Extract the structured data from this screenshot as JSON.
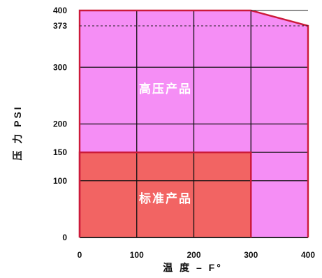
{
  "chart_data": {
    "type": "area",
    "xlabel": "温 度 – F°",
    "ylabel": "压 力 PSI",
    "xlim": [
      0,
      400
    ],
    "ylim": [
      0,
      400
    ],
    "x_ticks": [
      "0",
      "100",
      "200",
      "300",
      "400"
    ],
    "y_ticks": [
      "0",
      "100",
      "150",
      "200",
      "300",
      "373",
      "400"
    ],
    "grid": true,
    "series": [
      {
        "name": "高压产品",
        "color": "#f58ef5",
        "edge_color": "#cc1a3a",
        "x": [
          0,
          300,
          400,
          400
        ],
        "y": [
          400,
          400,
          373,
          0
        ]
      },
      {
        "name": "标准产品",
        "color": "#f26463",
        "edge_color": "#cc1a3a",
        "x": [
          0,
          300,
          300
        ],
        "y": [
          150,
          150,
          0
        ]
      }
    ],
    "reference_lines": [
      {
        "y": 373,
        "style": "dashed",
        "x_from": 0,
        "x_to": 400
      },
      {
        "y": 400,
        "style": "solid",
        "x_from": 300,
        "x_to": 400
      }
    ]
  }
}
